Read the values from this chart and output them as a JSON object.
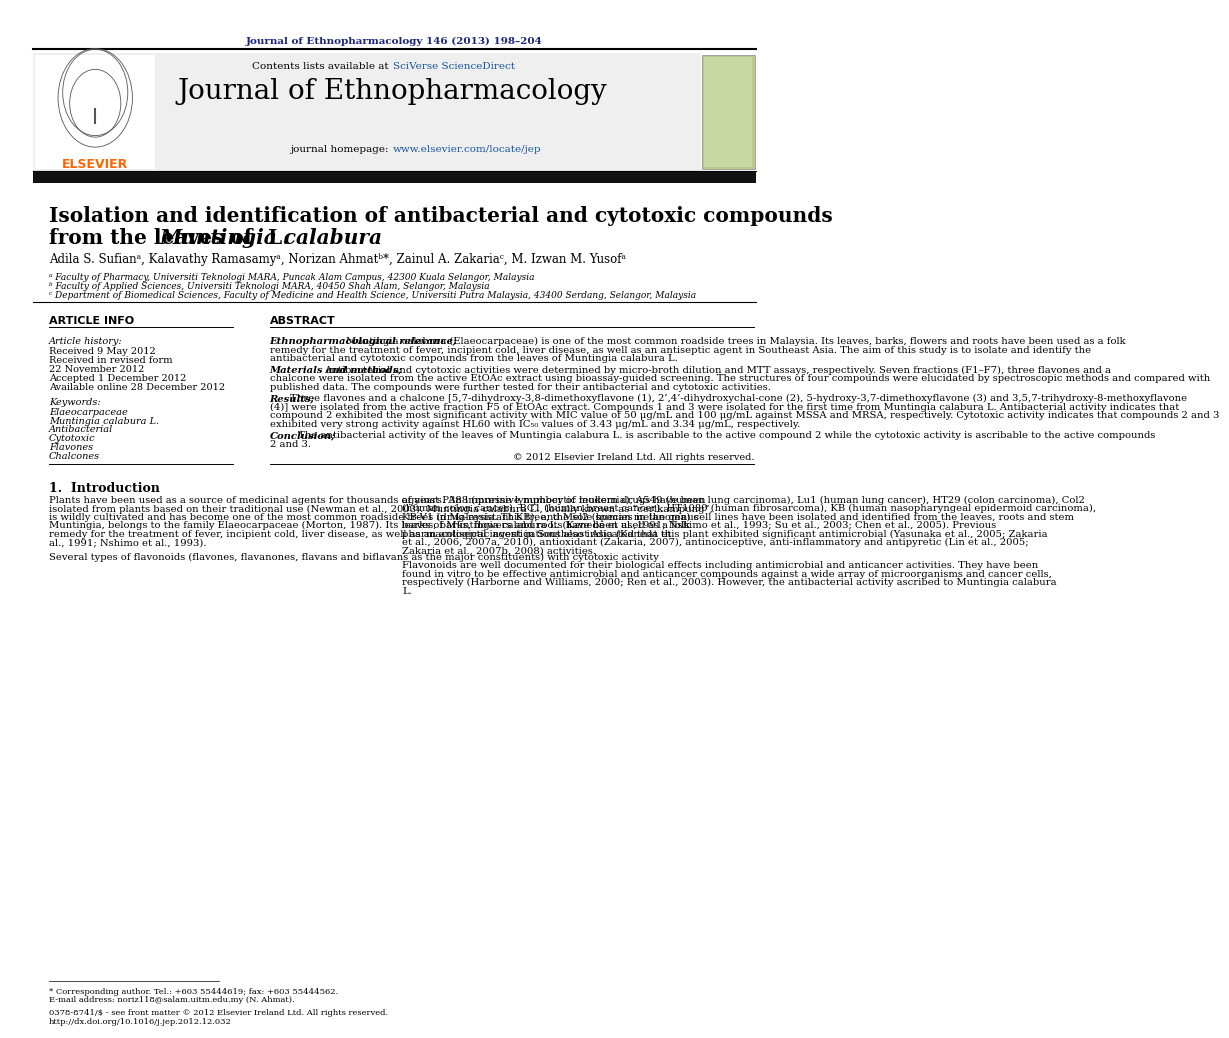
{
  "bg_color": "#ffffff",
  "top_journal_ref": "Journal of Ethnopharmacology 146 (2013) 198–204",
  "journal_title": "Journal of Ethnopharmacology",
  "contents_line_prefix": "Contents lists available at ",
  "contents_line_link": "SciVerse ScienceDirect",
  "journal_homepage_prefix": "journal homepage: ",
  "journal_homepage_link": "www.elsevier.com/locate/jep",
  "paper_title_line1": "Isolation and identification of antibacterial and cytotoxic compounds",
  "paper_title_line2_regular": "from the leaves of ",
  "paper_title_line2_italic": "Muntingia calabura",
  "paper_title_line2_end": " L.",
  "authors": "Adila S. Sufianᵃ, Kalavathy Ramasamyᵃ, Norizan Ahmatᵇ*, Zainul A. Zakariaᶜ, M. Izwan M. Yusofᵃ",
  "affil_a": "ᵃ Faculty of Pharmacy, Universiti Teknologi MARA, Puncak Alam Campus, 42300 Kuala Selangor, Malaysia",
  "affil_b": "ᵇ Faculty of Applied Sciences, Universiti Teknologi MARA, 40450 Shah Alam, Selangor, Malaysia",
  "affil_c": "ᶜ Department of Biomedical Sciences, Faculty of Medicine and Health Science, Universiti Putra Malaysia, 43400 Serdang, Selangor, Malaysia",
  "article_info_header": "ARTICLE INFO",
  "abstract_header": "ABSTRACT",
  "article_history_label": "Article history:",
  "history_lines": [
    "Received 9 May 2012",
    "Received in revised form",
    "22 November 2012",
    "Accepted 1 December 2012",
    "Available online 28 December 2012"
  ],
  "keywords_label": "Keywords:",
  "keywords": [
    "Elaeocarpaceae",
    "Muntingia calabura L.",
    "Antibacterial",
    "Cytotoxic",
    "Flavones",
    "Chalcones"
  ],
  "abs_rel_label": "Ethnopharmacological relevance;",
  "abs_rel_body": " Muntingia calabura (Elaeocarpaceae) is one of the most common roadside trees in Malaysia. Its leaves, barks, flowers and roots have been used as a folk remedy for the treatment of fever, incipient cold, liver disease, as well as an antiseptic agent in Southeast Asia. The aim of this study is to isolate and identify the antibacterial and cytotoxic compounds from the leaves of Muntingia calabura L.",
  "abs_mm_label": "Materials and methods;",
  "abs_mm_body": " Antibacterial and cytotoxic activities were determined by micro-broth dilution and MTT assays, respectively. Seven fractions (F1–F7), three flavones and a chalcone were isolated from the active EtOAc extract using bioassay-guided screening. The structures of four compounds were elucidated by spectroscopic methods and compared with published data. The compounds were further tested for their antibacterial and cytotoxic activities.",
  "abs_res_label": "Results;",
  "abs_res_body": " Three flavones and a chalcone [5,7-dihydroxy-3,8-dimethoxyflavone (1), 2’,4’-dihydroxychal-cone (2), 5-hydroxy-3,7-dimethoxyflavone (3) and 3,5,7-trihydroxy-8-methoxyflavone (4)] were isolated from the active fraction F5 of EtOAc extract. Compounds 1 and 3 were isolated for the first time from Muntingia calabura L. Antibacterial activity indicates that compound 2 exhibited the most significant activity with MIC value of 50 μg/mL and 100 μg/mL against MSSA and MRSA, respectively. Cytotoxic activity indicates that compounds 2 and 3 exhibited very strong activity against HL60 with IC₅₀ values of 3.43 μg/mL and 3.34 μg/mL, respectively.",
  "abs_conc_label": "Conclusion;",
  "abs_conc_body": " The antibacterial activity of the leaves of Muntingia calabura L. is ascribable to the active compound 2 while the cytotoxic activity is ascribable to the active compounds 2 and 3.",
  "copyright": "© 2012 Elsevier Ireland Ltd. All rights reserved.",
  "intro_header": "1.  Introduction",
  "intro_col1_para1": "Plants have been used as a source of medicinal agents for thousands of years. An impressive number of modern drugs have been isolated from plants based on their traditional use (Newman et al., 2003). Muntingia calabura L., locally known as “cerikampung”, is wildly cultivated and has become one of the most common roadside trees in Malaysia. This tree, the sole species in the genus Muntingia, belongs to the family Elaeocarpaceae (Morton, 1987). Its leaves, barks, flowers and roots have been used as a folk remedy for the treatment of fever, incipient cold, liver disease, as well as an antiseptic agent in Southeast Asia (Kaneda et al., 1991; Nshimo et al., 1993).",
  "intro_col1_para2": "Several types of flavonoids (flavones, flavanones, flavans and biflavans as the major constituents) with cytotoxic activity",
  "intro_col2_para1": "against P388 (murine lymphocytic leukemia), A549 (human lung carcinoma), Lu1 (human lung cancer), HT29 (colon carcinoma), Col2 (human colon cancer), BC1 (human breast cancer), HT1080 (human fibrosarcoma), KB (human nasopharyngeal epidermoid carcinoma), KB-V1 (drug-resistant KB), and Mel2 (human melanoma) cell lines have been isolated and identified from the leaves, roots and stem barks of Muntingia calabura L. (Kaneda et al.,1991; Nshimo et al., 1993; Su et al., 2003; Chen et al., 2005). Previous pharmacological investigations also indicated that this plant exhibited significant antimicrobial (Yasunaka et al., 2005; Zakaria et al., 2006, 2007a, 2010), antioxidant (Zakaria, 2007), antinociceptive, anti-inflammatory and antipyretic (Lin et al., 2005; Zakaria et al., 2007b, 2008) activities.",
  "intro_col2_para2": "Flavonoids are well documented for their biological effects including antimicrobial and anticancer activities. They have been found in vitro to be effective antimicrobial and anticancer compounds against a wide array of microorganisms and cancer cells, respectively (Harborne and Williams, 2000; Ren et al., 2003). However, the antibacterial activity ascribed to Muntingia calabura L.",
  "footnote1": "* Corresponding author. Tel.: +603 55444619; fax: +603 55444562.",
  "footnote2": "E-mail address: noriz118@salam.uitm.edu.my (N. Ahmat).",
  "footnote3": "0378-8741/$ - see front matter © 2012 Elsevier Ireland Ltd. All rights reserved.",
  "footnote4": "http://dx.doi.org/10.1016/j.jep.2012.12.032",
  "link_color": "#1a56a0",
  "title_ref_color": "#1a237e",
  "header_bg": "#efefef",
  "thick_bar_color": "#111111",
  "elsevier_color": "#ff6600"
}
